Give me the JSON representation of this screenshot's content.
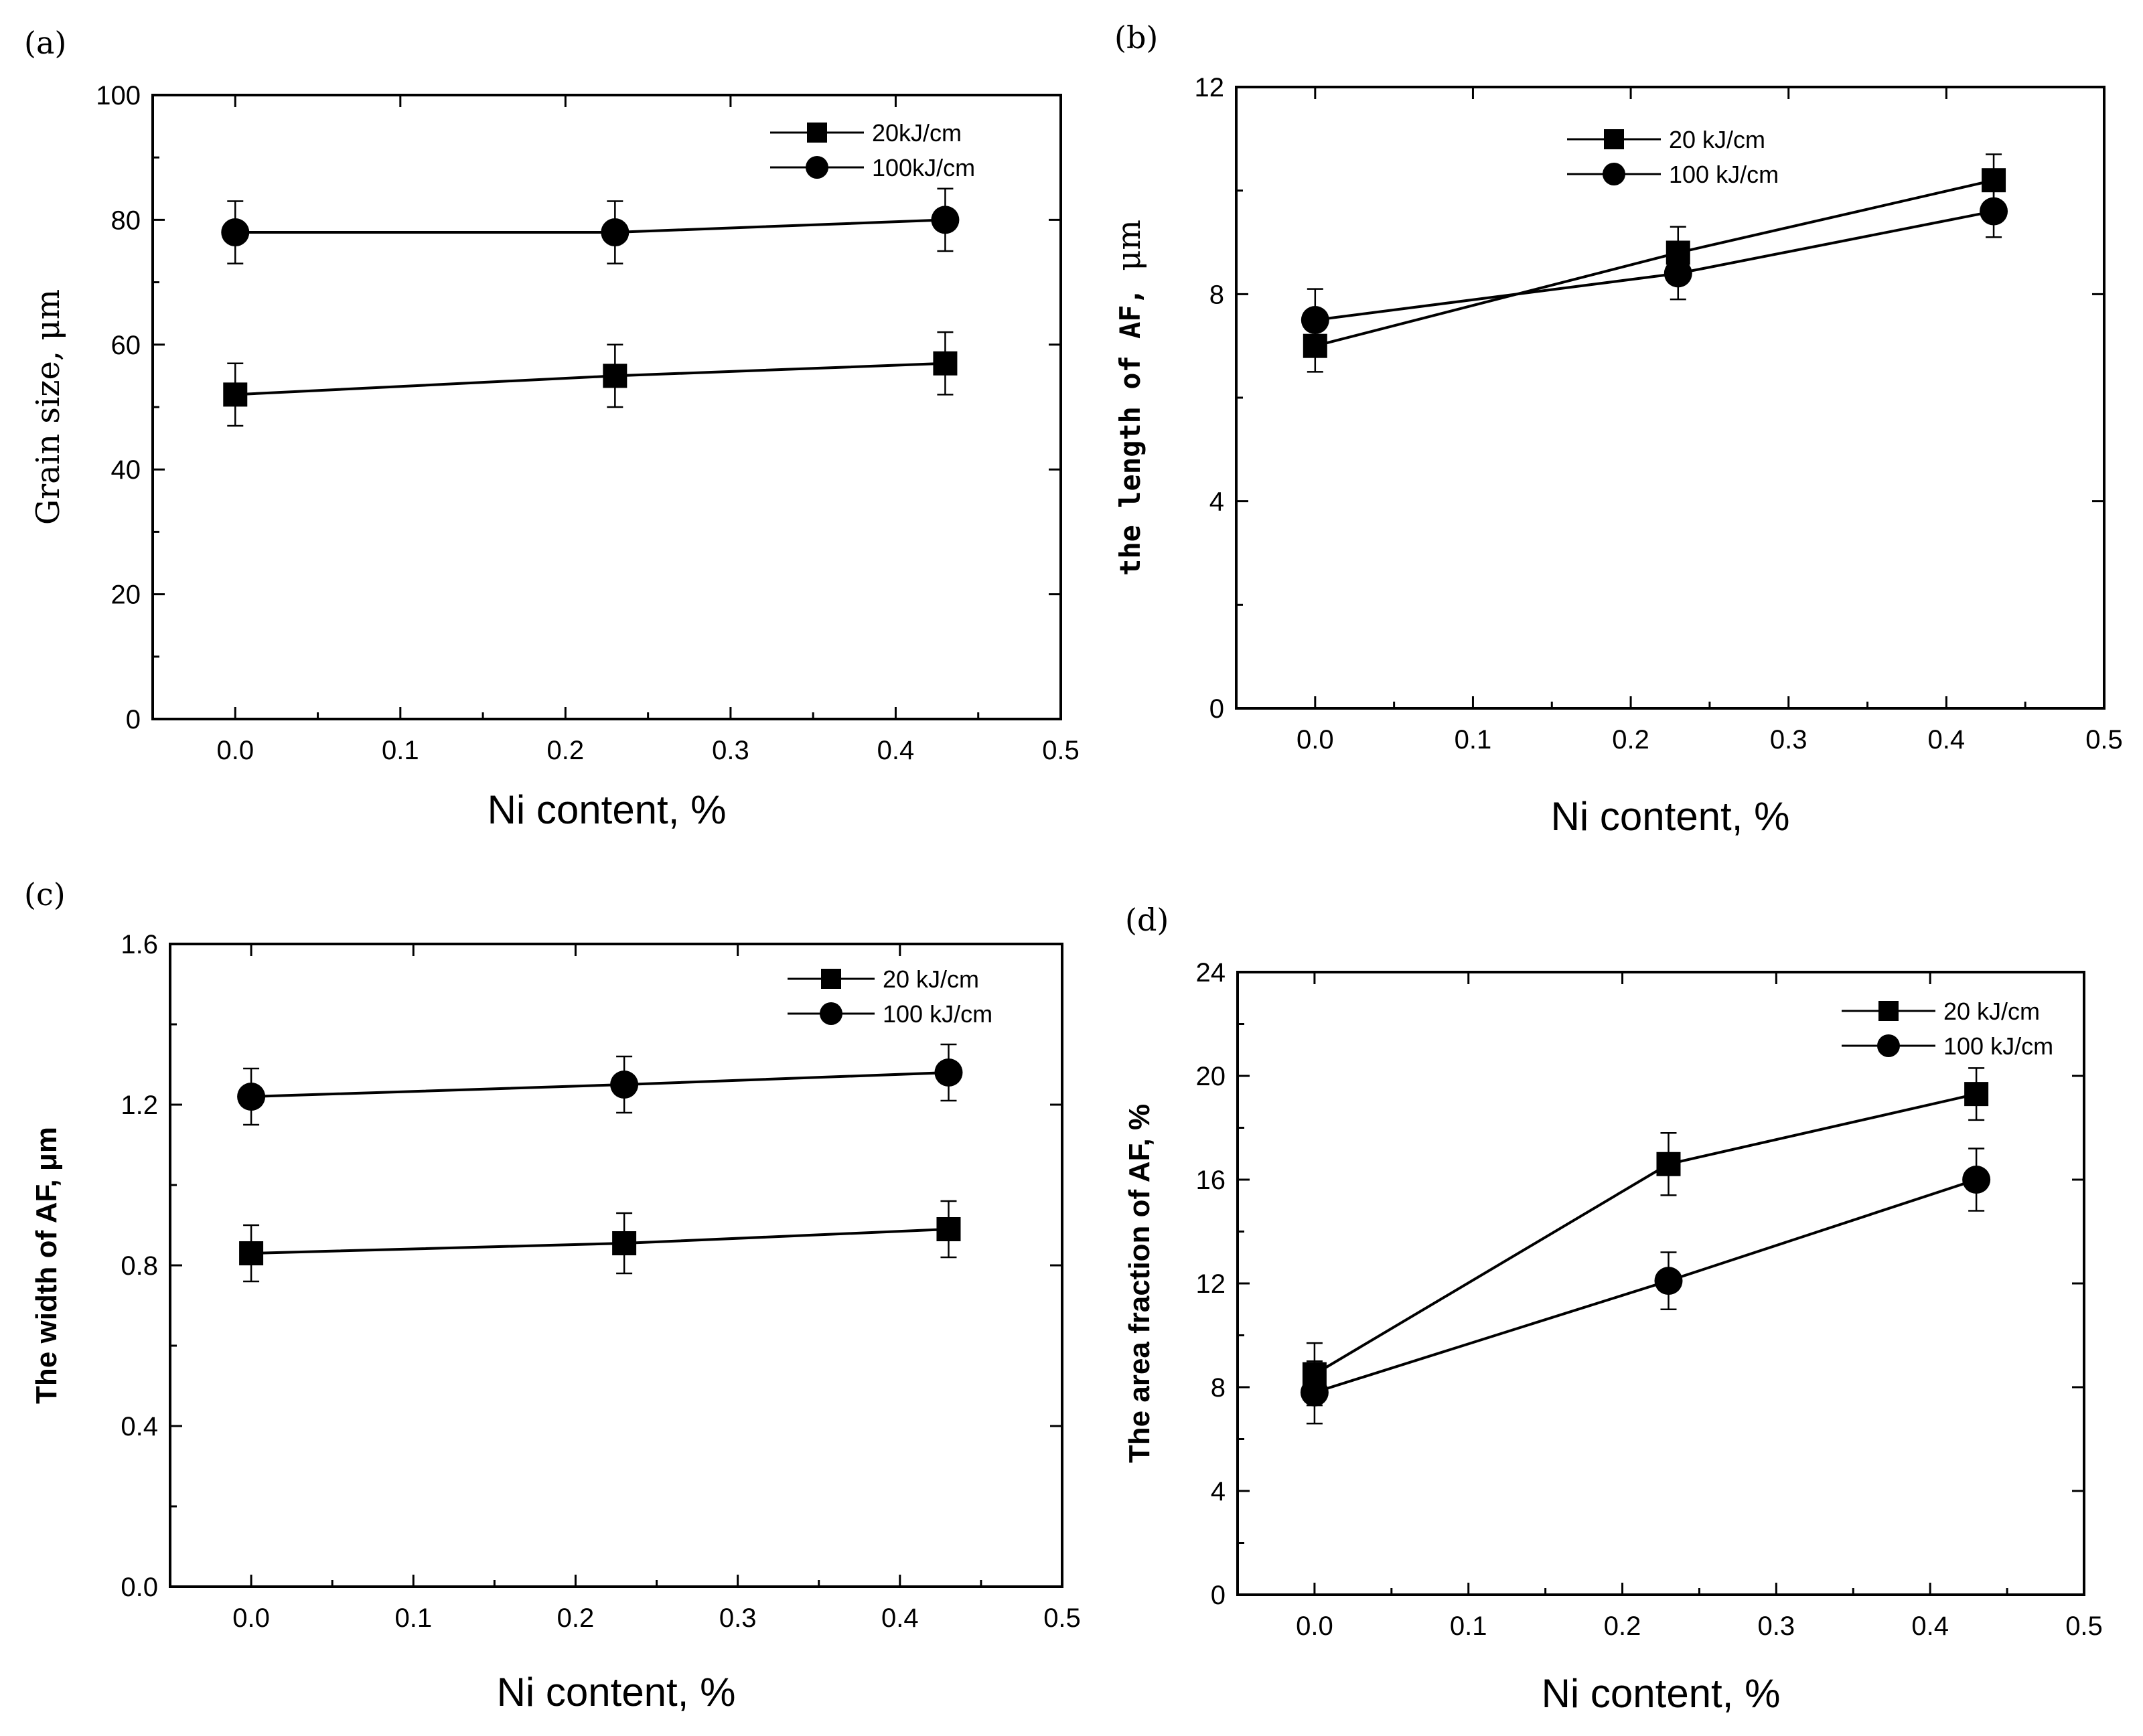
{
  "chart_data": [
    {
      "panel": "(a)",
      "type": "line",
      "xlabel": "Ni content, %",
      "ylabel": "Grain size, μm",
      "xlim": [
        -0.05,
        0.5
      ],
      "ylim": [
        0,
        100
      ],
      "xticks": [
        "0.0",
        "0.1",
        "0.2",
        "0.3",
        "0.4",
        "0.5"
      ],
      "yticks": [
        "0",
        "20",
        "40",
        "60",
        "80",
        "100"
      ],
      "x": [
        0.0,
        0.23,
        0.43
      ],
      "series": [
        {
          "name": "20kJ/cm",
          "marker": "square",
          "values": [
            52,
            55,
            57
          ],
          "errors": [
            5,
            5,
            5
          ]
        },
        {
          "name": "100kJ/cm",
          "marker": "circle",
          "values": [
            78,
            78,
            80
          ],
          "errors": [
            5,
            5,
            5
          ]
        }
      ],
      "legend": "top-right"
    },
    {
      "panel": "(b)",
      "type": "line",
      "xlabel": "Ni content, %",
      "ylabel_text": "the length of AF,",
      "ylabel_unit": "μm",
      "xlim": [
        -0.05,
        0.5
      ],
      "ylim": [
        0,
        12
      ],
      "xticks": [
        "0.0",
        "0.1",
        "0.2",
        "0.3",
        "0.4",
        "0.5"
      ],
      "yticks": [
        "0",
        "4",
        "8",
        "12"
      ],
      "x": [
        0.0,
        0.23,
        0.43
      ],
      "series": [
        {
          "name": "20 kJ/cm",
          "marker": "square",
          "values": [
            7.0,
            8.8,
            10.2
          ],
          "errors": [
            0.5,
            0.5,
            0.5
          ]
        },
        {
          "name": "100 kJ/cm",
          "marker": "circle",
          "values": [
            7.5,
            8.4,
            9.6
          ],
          "errors": [
            0.6,
            0.5,
            0.5
          ]
        }
      ],
      "legend": "top-center"
    },
    {
      "panel": "(c)",
      "type": "line",
      "xlabel": "Ni content, %",
      "ylabel": "The width of AF, μm",
      "xlim": [
        -0.05,
        0.5
      ],
      "ylim": [
        0,
        1.6
      ],
      "xticks": [
        "0.0",
        "0.1",
        "0.2",
        "0.3",
        "0.4",
        "0.5"
      ],
      "yticks": [
        "0.0",
        "0.4",
        "0.8",
        "1.2",
        "1.6"
      ],
      "x": [
        0.0,
        0.23,
        0.43
      ],
      "series": [
        {
          "name": "20 kJ/cm",
          "marker": "square",
          "values": [
            0.83,
            0.855,
            0.89
          ],
          "errors": [
            0.07,
            0.075,
            0.07
          ]
        },
        {
          "name": "100 kJ/cm",
          "marker": "circle",
          "values": [
            1.22,
            1.25,
            1.28
          ],
          "errors": [
            0.07,
            0.07,
            0.07
          ]
        }
      ],
      "legend": "top-right"
    },
    {
      "panel": "(d)",
      "type": "line",
      "xlabel": "Ni content, %",
      "ylabel": "The area fraction of AF, %",
      "xlim": [
        -0.05,
        0.5
      ],
      "ylim": [
        0,
        24
      ],
      "xticks": [
        "0.0",
        "0.1",
        "0.2",
        "0.3",
        "0.4",
        "0.5"
      ],
      "yticks": [
        "0",
        "4",
        "8",
        "12",
        "16",
        "20",
        "24"
      ],
      "x": [
        0.0,
        0.23,
        0.43
      ],
      "series": [
        {
          "name": "20 kJ/cm",
          "marker": "square",
          "values": [
            8.5,
            16.6,
            19.3
          ],
          "errors": [
            1.2,
            1.2,
            1.0
          ]
        },
        {
          "name": "100 kJ/cm",
          "marker": "circle",
          "values": [
            7.8,
            12.1,
            16.0
          ],
          "errors": [
            1.2,
            1.1,
            1.2
          ]
        }
      ],
      "legend": "top-right"
    }
  ]
}
